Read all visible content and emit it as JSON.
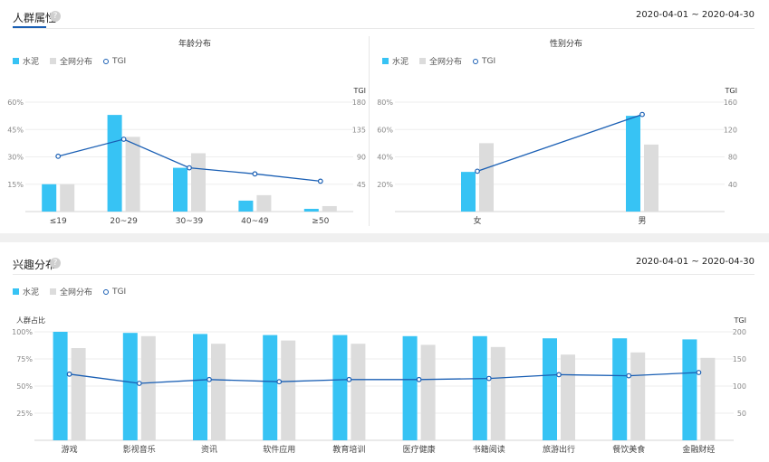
{
  "colors": {
    "primary": "#37c3f4",
    "secondary": "#dcdcdc",
    "tgi_line": "#1a5fb4",
    "accent_underline": "#1a5fb4"
  },
  "sections": {
    "crowd": {
      "title": "人群属性",
      "date_range": "2020-04-01 ~ 2020-04-30",
      "help_icon": "question-circle-icon"
    },
    "interest": {
      "title": "兴趣分布",
      "date_range": "2020-04-01 ~ 2020-04-30",
      "help_icon": "question-circle-icon"
    }
  },
  "legend": {
    "primary": "水泥",
    "secondary": "全网分布",
    "tgi": "TGI"
  },
  "chart_data": [
    {
      "id": "age",
      "type": "bar",
      "title": "年龄分布",
      "categories": [
        "≤19",
        "20~29",
        "30~39",
        "40~49",
        "≥50"
      ],
      "series": [
        {
          "name": "水泥",
          "values": [
            15,
            53,
            24,
            6,
            1.5
          ]
        },
        {
          "name": "全网分布",
          "values": [
            15,
            41,
            32,
            9,
            3
          ]
        },
        {
          "name": "TGI",
          "axis": "right",
          "values": [
            91,
            119,
            72,
            62,
            50
          ]
        }
      ],
      "left_axis": {
        "ticks": [
          "15%",
          "30%",
          "45%",
          "60%"
        ],
        "max": 60
      },
      "right_axis": {
        "label": "TGI",
        "ticks": [
          "45",
          "90",
          "135",
          "180"
        ],
        "max": 180
      }
    },
    {
      "id": "gender",
      "type": "bar",
      "title": "性别分布",
      "categories": [
        "女",
        "男"
      ],
      "series": [
        {
          "name": "水泥",
          "values": [
            29,
            70
          ]
        },
        {
          "name": "全网分布",
          "values": [
            50,
            49
          ]
        },
        {
          "name": "TGI",
          "axis": "right",
          "values": [
            59,
            142
          ]
        }
      ],
      "left_axis": {
        "ticks": [
          "20%",
          "40%",
          "60%",
          "80%"
        ],
        "max": 80
      },
      "right_axis": {
        "label": "TGI",
        "ticks": [
          "40",
          "80",
          "120",
          "160"
        ],
        "max": 160
      }
    },
    {
      "id": "interest",
      "type": "bar",
      "title": "",
      "categories": [
        "游戏",
        "影视音乐",
        "资讯",
        "软件应用",
        "教育培训",
        "医疗健康",
        "书籍阅读",
        "旅游出行",
        "餐饮美食",
        "金融财经"
      ],
      "series": [
        {
          "name": "水泥",
          "values": [
            100,
            99,
            98,
            97,
            97,
            96,
            96,
            94,
            94,
            93
          ]
        },
        {
          "name": "全网分布",
          "values": [
            85,
            96,
            89,
            92,
            89,
            88,
            86,
            79,
            81,
            76
          ]
        },
        {
          "name": "TGI",
          "axis": "right",
          "values": [
            122,
            105,
            112,
            108,
            112,
            112,
            114,
            121,
            119,
            125
          ]
        }
      ],
      "left_axis": {
        "label": "人群占比",
        "ticks": [
          "25%",
          "50%",
          "75%",
          "100%"
        ],
        "max": 100
      },
      "right_axis": {
        "label": "TGI",
        "ticks": [
          "50",
          "100",
          "150",
          "200"
        ],
        "max": 200
      }
    }
  ]
}
